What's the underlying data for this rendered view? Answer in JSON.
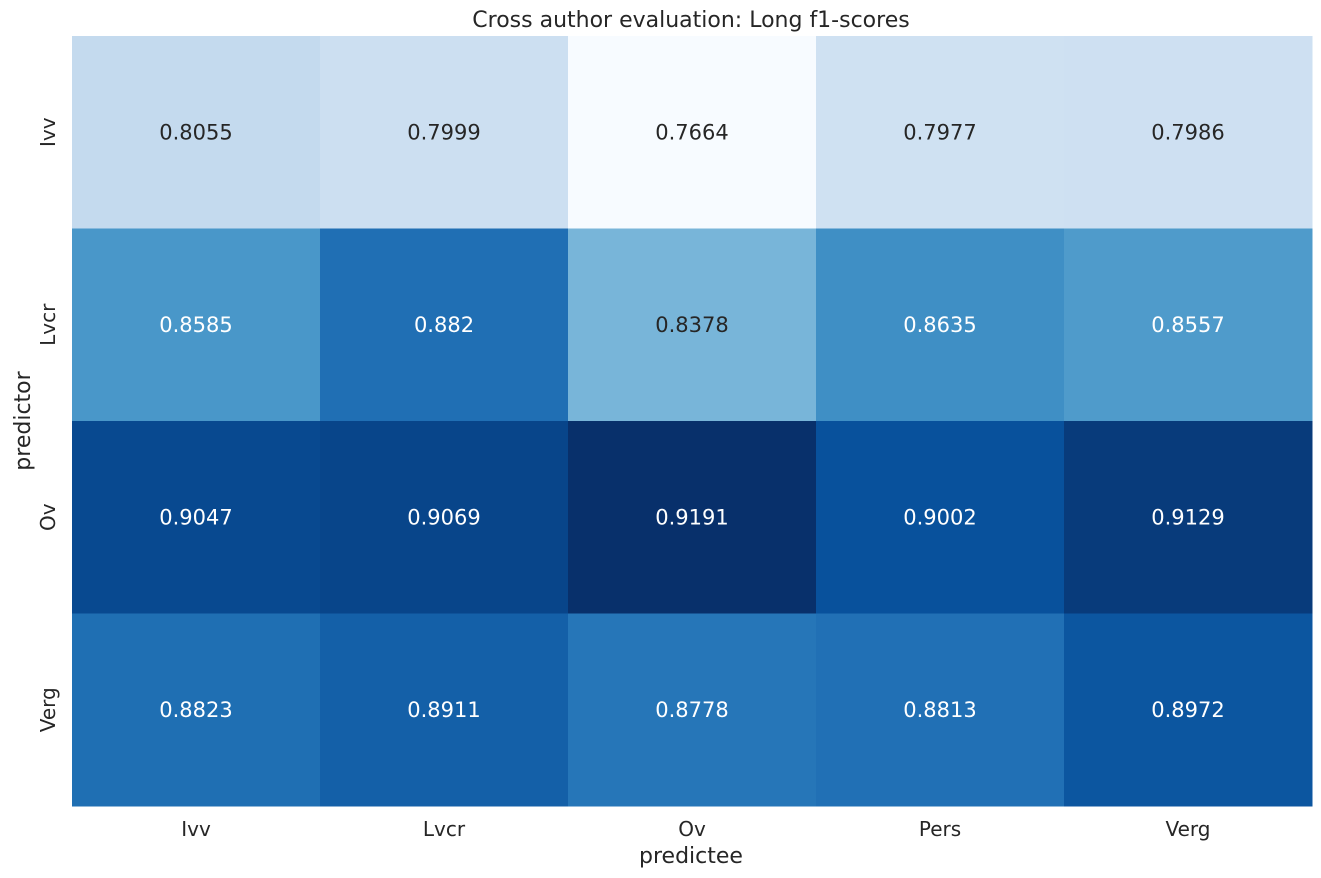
{
  "chart_data": {
    "type": "heatmap",
    "title": "Cross author evaluation: Long f1-scores",
    "xlabel": "predictee",
    "ylabel": "predictor",
    "x_categories": [
      "Ivv",
      "Lvcr",
      "Ov",
      "Pers",
      "Verg"
    ],
    "y_categories": [
      "Ivv",
      "Lvcr",
      "Ov",
      "Verg"
    ],
    "values": [
      [
        0.8055,
        0.7999,
        0.7664,
        0.7977,
        0.7986
      ],
      [
        0.8585,
        0.882,
        0.8378,
        0.8635,
        0.8557
      ],
      [
        0.9047,
        0.9069,
        0.9191,
        0.9002,
        0.9129
      ],
      [
        0.8823,
        0.8911,
        0.8778,
        0.8813,
        0.8972
      ]
    ],
    "colormap": "Blues",
    "colorbar": false,
    "grid": false,
    "value_labels": [
      "0.8055",
      "0.7999",
      "0.7664",
      "0.7977",
      "0.7986",
      "0.8585",
      "0.882",
      "0.8378",
      "0.8635",
      "0.8557",
      "0.9047",
      "0.9069",
      "0.9191",
      "0.9002",
      "0.9129",
      "0.8823",
      "0.8911",
      "0.8778",
      "0.8813",
      "0.8972"
    ]
  }
}
